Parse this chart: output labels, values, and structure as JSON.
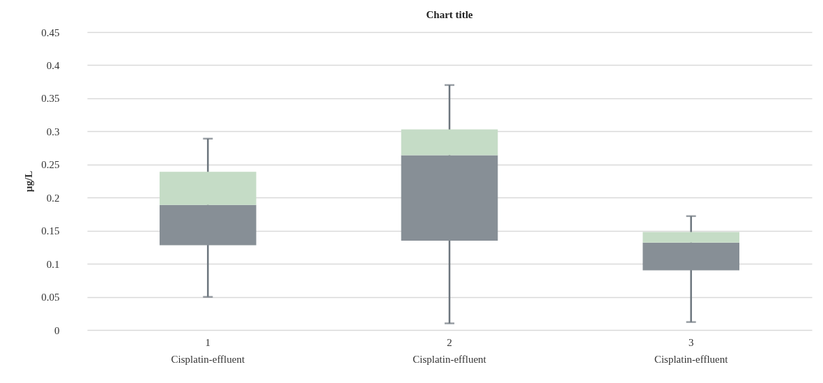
{
  "chart_data": {
    "type": "box",
    "title": "Chart title",
    "ylabel": "µg/L",
    "categories": [
      "1\nCisplatin-effluent",
      "2\nCisplatin-effluent",
      "3\nCisplatin-effluent"
    ],
    "boxes": [
      {
        "low": 0.05,
        "q1": 0.128,
        "median": 0.189,
        "q3": 0.239,
        "high": 0.289
      },
      {
        "low": 0.01,
        "q1": 0.135,
        "median": 0.264,
        "q3": 0.303,
        "high": 0.37
      },
      {
        "low": 0.012,
        "q1": 0.09,
        "median": 0.132,
        "q3": 0.148,
        "high": 0.172
      }
    ],
    "colors": [
      [
        "#878f96",
        "#c5dcc6"
      ],
      [
        "#878f96",
        "#c5dcc6"
      ],
      [
        "#878f96",
        "#c5dcc6"
      ]
    ],
    "ylim": [
      0,
      0.45
    ],
    "yticks": [
      0,
      0.05,
      0.1,
      0.15,
      0.2,
      0.25,
      0.3,
      0.35,
      0.4,
      0.45
    ],
    "grid": "y"
  }
}
